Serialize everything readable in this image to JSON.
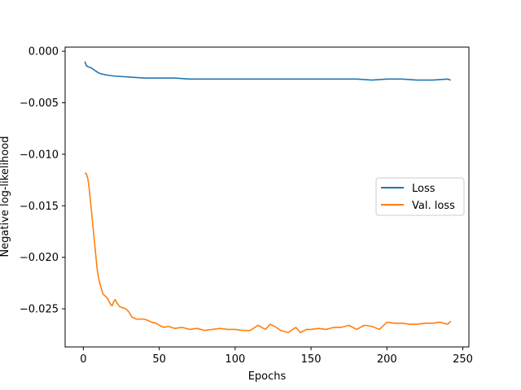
{
  "chart_data": {
    "type": "line",
    "xlabel": "Epochs",
    "ylabel": "Negative log-likelihood",
    "xlim": [
      -12,
      254
    ],
    "ylim": [
      -0.0287,
      0.0004
    ],
    "xticks": [
      0,
      50,
      100,
      150,
      200,
      250
    ],
    "xtick_labels": [
      "0",
      "50",
      "100",
      "150",
      "200",
      "250"
    ],
    "yticks": [
      0.0,
      -0.005,
      -0.01,
      -0.015,
      -0.02,
      -0.025
    ],
    "ytick_labels": [
      "0.000",
      "−0.005",
      "−0.010",
      "−0.015",
      "−0.020",
      "−0.025"
    ],
    "grid": false,
    "legend_position": "center-right",
    "series": [
      {
        "name": "Loss",
        "color": "#1f77b4",
        "x": [
          1,
          2,
          3,
          5,
          8,
          10,
          12,
          15,
          20,
          30,
          40,
          50,
          60,
          70,
          80,
          90,
          100,
          110,
          120,
          130,
          140,
          150,
          160,
          170,
          180,
          190,
          200,
          210,
          220,
          230,
          240,
          242
        ],
        "y": [
          -0.001,
          -0.0014,
          -0.0015,
          -0.0016,
          -0.0019,
          -0.0021,
          -0.0022,
          -0.0023,
          -0.0024,
          -0.0025,
          -0.0026,
          -0.0026,
          -0.0026,
          -0.0027,
          -0.0027,
          -0.0027,
          -0.0027,
          -0.0027,
          -0.0027,
          -0.0027,
          -0.0027,
          -0.0027,
          -0.0027,
          -0.0027,
          -0.0027,
          -0.0028,
          -0.0027,
          -0.0027,
          -0.0028,
          -0.0028,
          -0.0027,
          -0.0028
        ]
      },
      {
        "name": "Val. loss",
        "color": "#ff7f0e",
        "x": [
          1,
          2,
          3,
          4,
          5,
          6,
          7,
          8,
          9,
          10,
          11,
          12,
          13,
          14,
          16,
          18,
          19,
          20,
          21,
          22,
          24,
          26,
          28,
          30,
          32,
          35,
          40,
          42,
          45,
          48,
          50,
          53,
          56,
          60,
          65,
          70,
          75,
          80,
          85,
          90,
          95,
          100,
          105,
          110,
          115,
          120,
          123,
          126,
          130,
          135,
          140,
          143,
          147,
          150,
          155,
          160,
          165,
          170,
          175,
          180,
          185,
          190,
          195,
          200,
          205,
          210,
          215,
          220,
          225,
          230,
          235,
          240,
          242
        ],
        "y": [
          -0.0118,
          -0.0119,
          -0.0124,
          -0.0135,
          -0.015,
          -0.0165,
          -0.018,
          -0.0195,
          -0.021,
          -0.022,
          -0.0226,
          -0.0231,
          -0.0236,
          -0.0237,
          -0.024,
          -0.0246,
          -0.0247,
          -0.0243,
          -0.0241,
          -0.0244,
          -0.0248,
          -0.0249,
          -0.025,
          -0.0253,
          -0.0258,
          -0.026,
          -0.026,
          -0.0261,
          -0.0263,
          -0.0264,
          -0.0266,
          -0.0268,
          -0.0267,
          -0.0269,
          -0.0268,
          -0.027,
          -0.0269,
          -0.0271,
          -0.027,
          -0.0269,
          -0.027,
          -0.027,
          -0.0271,
          -0.0271,
          -0.0266,
          -0.027,
          -0.0265,
          -0.0267,
          -0.0271,
          -0.0273,
          -0.0268,
          -0.0273,
          -0.027,
          -0.027,
          -0.0269,
          -0.027,
          -0.0268,
          -0.0268,
          -0.0266,
          -0.027,
          -0.0266,
          -0.0267,
          -0.027,
          -0.0263,
          -0.0264,
          -0.0264,
          -0.0265,
          -0.0265,
          -0.0264,
          -0.0264,
          -0.0263,
          -0.0265,
          -0.0262
        ]
      }
    ]
  }
}
